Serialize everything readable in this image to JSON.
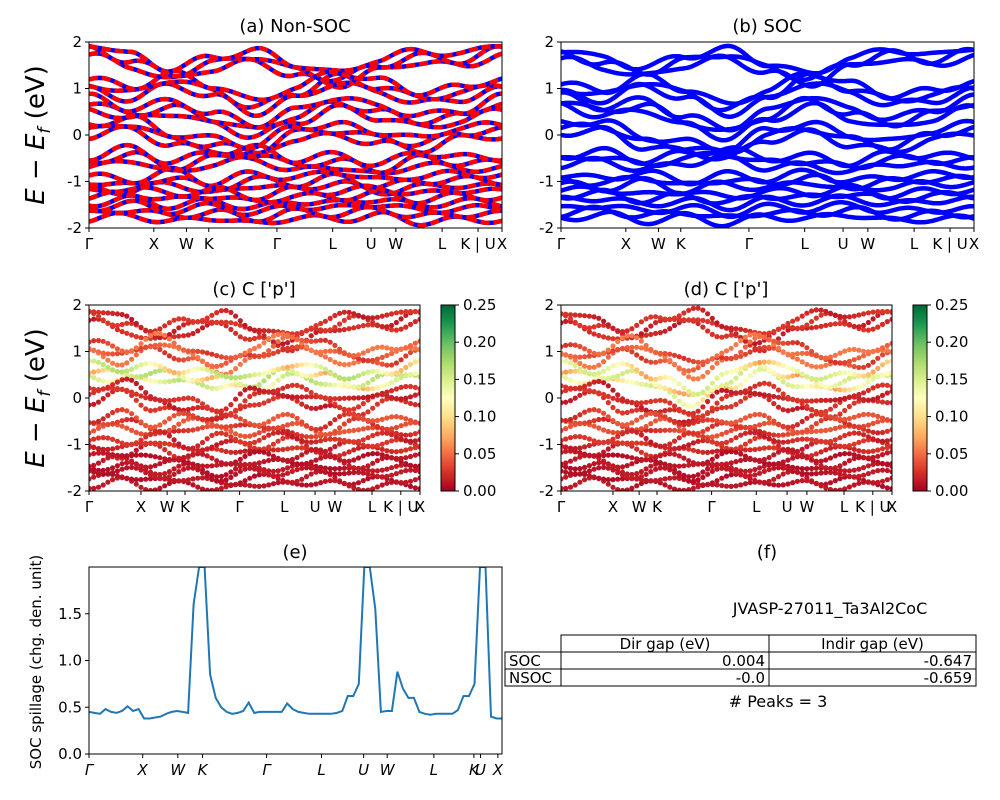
{
  "chart_data": [
    {
      "id": "a",
      "type": "line",
      "title": "(a) Non-SOC",
      "ylabel": "E − E_f (eV)",
      "ylim": [
        -2,
        2
      ],
      "yticks": [
        -2,
        -1,
        0,
        1,
        2
      ],
      "xticks": [
        "Γ",
        "X",
        "W",
        "K",
        "Γ",
        "L",
        "U",
        "W",
        "L",
        "K | U",
        "X"
      ],
      "series": [
        {
          "values": [
            1.85,
            1.6,
            1.3,
            1.55,
            1.7,
            1.4,
            1.2,
            1.5,
            1.7,
            1.6,
            1.85
          ]
        },
        {
          "values": [
            1.1,
            0.9,
            1.2,
            0.95,
            0.6,
            0.9,
            1.25,
            1.05,
            0.8,
            0.9,
            1.1
          ]
        },
        {
          "values": [
            0.7,
            0.45,
            0.6,
            0.35,
            0.1,
            0.4,
            0.7,
            0.5,
            0.3,
            0.4,
            0.7
          ]
        },
        {
          "values": [
            0.1,
            0.25,
            -0.1,
            -0.2,
            -0.35,
            0.05,
            0.1,
            -0.05,
            -0.2,
            0.05,
            0.1
          ]
        },
        {
          "values": [
            -0.6,
            -0.4,
            -0.7,
            -0.5,
            -0.4,
            -0.65,
            -0.55,
            -0.75,
            -0.5,
            -0.6,
            -0.6
          ]
        },
        {
          "values": [
            -1.0,
            -1.1,
            -0.9,
            -1.15,
            -0.95,
            -1.05,
            -0.9,
            -1.1,
            -1.0,
            -0.95,
            -1.0
          ]
        },
        {
          "values": [
            -1.35,
            -1.25,
            -1.4,
            -1.3,
            -1.45,
            -1.3,
            -1.35,
            -1.25,
            -1.4,
            -1.3,
            -1.35
          ]
        },
        {
          "values": [
            -1.7,
            -1.6,
            -1.75,
            -1.65,
            -1.8,
            -1.65,
            -1.7,
            -1.6,
            -1.75,
            -1.7,
            -1.7
          ]
        }
      ],
      "colors": [
        "#ff0000",
        "#0000ff"
      ]
    },
    {
      "id": "b",
      "type": "line",
      "title": "(b) SOC",
      "ylim": [
        -2,
        2
      ],
      "yticks": [
        -2,
        -1,
        0,
        1,
        2
      ],
      "xticks": [
        "Γ",
        "X",
        "W",
        "K",
        "Γ",
        "L",
        "U",
        "W",
        "L",
        "K | U",
        "X"
      ],
      "series": [
        {
          "values": [
            1.75,
            1.55,
            1.35,
            1.6,
            1.75,
            1.45,
            1.2,
            1.55,
            1.75,
            1.6,
            1.8
          ]
        },
        {
          "values": [
            1.0,
            0.85,
            1.15,
            0.9,
            0.55,
            0.85,
            1.25,
            1.0,
            0.75,
            0.85,
            1.05
          ]
        },
        {
          "values": [
            0.75,
            0.5,
            0.65,
            0.3,
            0.05,
            0.4,
            0.75,
            0.45,
            0.25,
            0.45,
            0.7
          ]
        },
        {
          "values": [
            0.15,
            0.2,
            -0.15,
            -0.25,
            -0.4,
            0.0,
            0.15,
            -0.1,
            -0.25,
            0.0,
            0.15
          ]
        },
        {
          "values": [
            -0.55,
            -0.45,
            -0.65,
            -0.5,
            -0.4,
            -0.6,
            -0.55,
            -0.7,
            -0.5,
            -0.55,
            -0.55
          ]
        },
        {
          "values": [
            -0.95,
            -1.05,
            -0.9,
            -1.1,
            -0.95,
            -1.05,
            -0.9,
            -1.1,
            -1.0,
            -0.95,
            -0.95
          ]
        },
        {
          "values": [
            -1.3,
            -1.25,
            -1.4,
            -1.3,
            -1.45,
            -1.3,
            -1.35,
            -1.25,
            -1.4,
            -1.3,
            -1.3
          ]
        },
        {
          "values": [
            -1.7,
            -1.6,
            -1.75,
            -1.65,
            -1.8,
            -1.65,
            -1.7,
            -1.6,
            -1.75,
            -1.7,
            -1.7
          ]
        }
      ],
      "colors": [
        "#0000ff"
      ]
    },
    {
      "id": "c",
      "type": "scatter",
      "title": "(c)  C ['p']",
      "ylabel": "E − E_f (eV)",
      "ylim": [
        -2,
        2
      ],
      "yticks": [
        -2,
        -1,
        0,
        1,
        2
      ],
      "xticks": [
        "Γ",
        "X",
        "W",
        "K",
        "Γ",
        "L",
        "U",
        "W",
        "L",
        "K | U",
        "X"
      ],
      "colorbar": {
        "min": 0.0,
        "max": 0.25,
        "ticks": [
          "0.00",
          "0.05",
          "0.10",
          "0.15",
          "0.20",
          "0.25"
        ],
        "cmap": "RdYlGn"
      },
      "series": [
        {
          "values": [
            1.8,
            1.6,
            1.35,
            1.55,
            1.7,
            1.4,
            1.2,
            1.5,
            1.7,
            1.6,
            1.8
          ],
          "weight": 0.02
        },
        {
          "values": [
            1.1,
            0.9,
            1.2,
            0.95,
            0.7,
            0.95,
            1.25,
            1.05,
            0.85,
            0.9,
            1.1
          ],
          "weight": 0.04
        },
        {
          "values": [
            0.6,
            0.5,
            0.55,
            0.45,
            0.4,
            0.3,
            0.6,
            0.5,
            0.3,
            0.45,
            0.6
          ],
          "weight": 0.12
        },
        {
          "values": [
            0.05,
            0.25,
            -0.1,
            -0.2,
            -0.35,
            0.05,
            0.1,
            -0.05,
            -0.2,
            0.05,
            0.05
          ],
          "weight": 0.02
        },
        {
          "values": [
            -0.6,
            -0.45,
            -0.7,
            -0.5,
            -0.55,
            -0.65,
            -0.55,
            -0.75,
            -0.5,
            -0.6,
            -0.6
          ],
          "weight": 0.03
        },
        {
          "values": [
            -1.0,
            -1.1,
            -0.9,
            -1.15,
            -0.95,
            -1.05,
            -0.9,
            -1.1,
            -1.0,
            -0.95,
            -1.0
          ],
          "weight": 0.02
        },
        {
          "values": [
            -1.4,
            -1.3,
            -1.45,
            -1.35,
            -1.5,
            -1.35,
            -1.4,
            -1.3,
            -1.45,
            -1.35,
            -1.4
          ],
          "weight": 0.01
        },
        {
          "values": [
            -1.75,
            -1.65,
            -1.8,
            -1.7,
            -1.85,
            -1.7,
            -1.75,
            -1.65,
            -1.8,
            -1.75,
            -1.75
          ],
          "weight": 0.01
        }
      ]
    },
    {
      "id": "d",
      "type": "scatter",
      "title": "(d) C ['p']",
      "ylim": [
        -2,
        2
      ],
      "yticks": [
        -2,
        -1,
        0,
        1,
        2
      ],
      "xticks": [
        "Γ",
        "X",
        "W",
        "K",
        "Γ",
        "L",
        "U",
        "W",
        "L",
        "K | U",
        "X"
      ],
      "colorbar": {
        "min": 0.0,
        "max": 0.25,
        "ticks": [
          "0.00",
          "0.05",
          "0.10",
          "0.15",
          "0.20",
          "0.25"
        ],
        "cmap": "RdYlGn"
      },
      "series": [
        {
          "values": [
            1.75,
            1.55,
            1.35,
            1.6,
            1.75,
            1.45,
            1.2,
            1.55,
            1.75,
            1.6,
            1.8
          ],
          "weight": 0.02
        },
        {
          "values": [
            1.0,
            0.85,
            1.15,
            0.9,
            0.6,
            0.9,
            1.25,
            1.0,
            0.8,
            0.85,
            1.05
          ],
          "weight": 0.04
        },
        {
          "values": [
            0.6,
            0.45,
            0.55,
            0.3,
            0.0,
            0.35,
            0.7,
            0.45,
            0.3,
            0.4,
            0.6
          ],
          "weight": 0.11
        },
        {
          "values": [
            0.1,
            0.2,
            -0.15,
            -0.25,
            -0.4,
            0.0,
            0.15,
            -0.1,
            -0.25,
            0.0,
            0.1
          ],
          "weight": 0.02
        },
        {
          "values": [
            -0.55,
            -0.45,
            -0.65,
            -0.5,
            -0.7,
            -0.6,
            -0.55,
            -0.7,
            -0.5,
            -0.55,
            -0.55
          ],
          "weight": 0.03
        },
        {
          "values": [
            -1.0,
            -1.05,
            -0.9,
            -1.1,
            -0.95,
            -1.05,
            -0.9,
            -1.1,
            -1.0,
            -0.95,
            -1.0
          ],
          "weight": 0.02
        },
        {
          "values": [
            -1.35,
            -1.3,
            -1.45,
            -1.35,
            -1.5,
            -1.35,
            -1.4,
            -1.3,
            -1.45,
            -1.35,
            -1.35
          ],
          "weight": 0.01
        },
        {
          "values": [
            -1.75,
            -1.65,
            -1.8,
            -1.7,
            -1.85,
            -1.7,
            -1.75,
            -1.65,
            -1.8,
            -1.75,
            -1.75
          ],
          "weight": 0.01
        }
      ]
    },
    {
      "id": "e",
      "type": "line",
      "title": "(e)",
      "ylabel": "SOC spillage (chg. den. unit)",
      "ylim": [
        0,
        2
      ],
      "yticks": [
        "0.0",
        "0.5",
        "1.0",
        "1.5"
      ],
      "xticks": [
        "Γ",
        "X",
        "W",
        "K",
        "Γ",
        "L",
        "U",
        "W",
        "L",
        "K",
        "U",
        "X"
      ],
      "color": "#1f77b4",
      "values": [
        0.45,
        0.44,
        0.43,
        0.48,
        0.45,
        0.44,
        0.46,
        0.51,
        0.46,
        0.48,
        0.38,
        0.38,
        0.39,
        0.4,
        0.43,
        0.45,
        0.46,
        0.45,
        0.44,
        1.6,
        2.0,
        2.0,
        0.85,
        0.6,
        0.5,
        0.45,
        0.43,
        0.44,
        0.46,
        0.55,
        0.44,
        0.45,
        0.45,
        0.45,
        0.45,
        0.45,
        0.54,
        0.48,
        0.45,
        0.44,
        0.43,
        0.43,
        0.43,
        0.43,
        0.43,
        0.44,
        0.46,
        0.62,
        0.62,
        0.75,
        2.0,
        2.0,
        1.55,
        0.45,
        0.46,
        0.46,
        0.88,
        0.7,
        0.6,
        0.6,
        0.45,
        0.43,
        0.42,
        0.43,
        0.43,
        0.43,
        0.43,
        0.47,
        0.62,
        0.62,
        0.75,
        2.0,
        2.0,
        0.4,
        0.38,
        0.38
      ]
    },
    {
      "id": "f",
      "type": "table",
      "title": "(f)",
      "subtitle": "JVASP-27011_Ta3Al2CoC",
      "columns": [
        "",
        "Dir gap (eV)",
        "Indir gap (eV)"
      ],
      "rows": [
        [
          "SOC",
          "0.004",
          "-0.647"
        ],
        [
          "NSOC",
          "-0.0",
          "-0.659"
        ]
      ],
      "footer": "# Peaks = 3"
    }
  ]
}
